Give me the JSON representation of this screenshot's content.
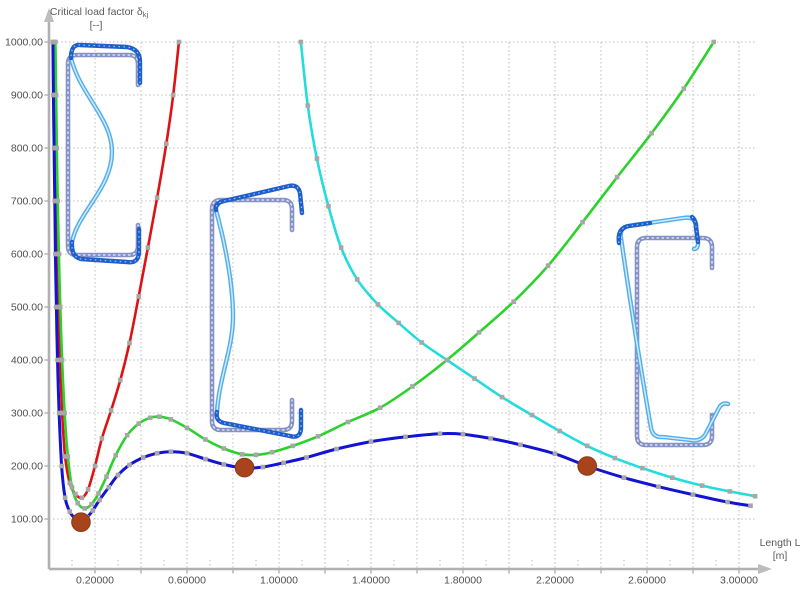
{
  "window": {
    "background": "#ffffff"
  },
  "y_axis": {
    "title": "Critical load factor δ",
    "title_sub": "kj",
    "unit": "[--]",
    "tick_labels": [
      "1000.00",
      "900.00",
      "800.00",
      "700.00",
      "600.00",
      "500.00",
      "400.00",
      "300.00",
      "200.00",
      "100.00"
    ]
  },
  "x_axis": {
    "title": "Length L",
    "unit": "[m]",
    "tick_labels": [
      "0.20000",
      "0.60000",
      "1.00000",
      "1.40000",
      "1.80000",
      "2.20000",
      "2.60000",
      "3.00000"
    ]
  },
  "chart_data": {
    "type": "line",
    "title": "",
    "xlabel": "Length L [m]",
    "ylabel": "Critical load factor δkj [--]",
    "xlim": [
      0,
      3.08
    ],
    "ylim": [
      0,
      1060
    ],
    "x_grid_step": 0.2,
    "y_grid_step": 100,
    "grid": "dotted",
    "legend": "none",
    "series": [
      {
        "name": "local-buckling-curve",
        "color": "#de1212",
        "points": [
          [
            0.022,
            1000
          ],
          [
            0.025,
            900
          ],
          [
            0.028,
            800
          ],
          [
            0.032,
            700
          ],
          [
            0.036,
            600
          ],
          [
            0.041,
            500
          ],
          [
            0.048,
            400
          ],
          [
            0.057,
            300
          ],
          [
            0.07,
            218
          ],
          [
            0.09,
            168
          ],
          [
            0.115,
            147
          ],
          [
            0.143,
            140
          ],
          [
            0.17,
            156
          ],
          [
            0.2,
            200
          ],
          [
            0.23,
            252
          ],
          [
            0.27,
            305
          ],
          [
            0.31,
            362
          ],
          [
            0.35,
            432
          ],
          [
            0.39,
            520
          ],
          [
            0.43,
            612
          ],
          [
            0.47,
            706
          ],
          [
            0.51,
            808
          ],
          [
            0.54,
            900
          ],
          [
            0.565,
            1000
          ]
        ]
      },
      {
        "name": "distortional-buckling-curve",
        "color": "#2bd22b",
        "points": [
          [
            0.028,
            1000
          ],
          [
            0.031,
            900
          ],
          [
            0.034,
            800
          ],
          [
            0.038,
            700
          ],
          [
            0.043,
            600
          ],
          [
            0.049,
            500
          ],
          [
            0.057,
            400
          ],
          [
            0.068,
            300
          ],
          [
            0.082,
            218
          ],
          [
            0.1,
            160
          ],
          [
            0.125,
            130
          ],
          [
            0.155,
            120
          ],
          [
            0.185,
            128
          ],
          [
            0.215,
            148
          ],
          [
            0.25,
            180
          ],
          [
            0.29,
            220
          ],
          [
            0.34,
            258
          ],
          [
            0.39,
            280
          ],
          [
            0.44,
            291
          ],
          [
            0.48,
            293
          ],
          [
            0.53,
            288
          ],
          [
            0.6,
            272
          ],
          [
            0.68,
            250
          ],
          [
            0.76,
            233
          ],
          [
            0.84,
            222
          ],
          [
            0.9,
            221
          ],
          [
            0.97,
            226
          ],
          [
            1.06,
            238
          ],
          [
            1.17,
            256
          ],
          [
            1.3,
            283
          ],
          [
            1.44,
            310
          ],
          [
            1.58,
            350
          ],
          [
            1.73,
            400
          ],
          [
            1.87,
            452
          ],
          [
            2.02,
            510
          ],
          [
            2.17,
            578
          ],
          [
            2.32,
            660
          ],
          [
            2.47,
            745
          ],
          [
            2.62,
            828
          ],
          [
            2.76,
            912
          ],
          [
            2.89,
            1000
          ]
        ]
      },
      {
        "name": "global-buckling-curve",
        "color": "#25dcdc",
        "points": [
          [
            1.095,
            1000
          ],
          [
            1.125,
            880
          ],
          [
            1.165,
            780
          ],
          [
            1.215,
            690
          ],
          [
            1.27,
            612
          ],
          [
            1.34,
            552
          ],
          [
            1.43,
            505
          ],
          [
            1.52,
            470
          ],
          [
            1.62,
            433
          ],
          [
            1.73,
            400
          ],
          [
            1.85,
            365
          ],
          [
            1.97,
            330
          ],
          [
            2.1,
            296
          ],
          [
            2.22,
            266
          ],
          [
            2.34,
            238
          ],
          [
            2.46,
            215
          ],
          [
            2.58,
            196
          ],
          [
            2.71,
            178
          ],
          [
            2.84,
            163
          ],
          [
            2.96,
            152
          ],
          [
            3.07,
            143
          ]
        ]
      },
      {
        "name": "governing-minimum-curve",
        "color": "#1313d2",
        "points": [
          [
            0.017,
            1000
          ],
          [
            0.019,
            900
          ],
          [
            0.022,
            800
          ],
          [
            0.025,
            700
          ],
          [
            0.028,
            600
          ],
          [
            0.032,
            500
          ],
          [
            0.037,
            400
          ],
          [
            0.044,
            300
          ],
          [
            0.055,
            200
          ],
          [
            0.07,
            140
          ],
          [
            0.09,
            114
          ],
          [
            0.115,
            101
          ],
          [
            0.14,
            97
          ],
          [
            0.165,
            103
          ],
          [
            0.19,
            116
          ],
          [
            0.22,
            136
          ],
          [
            0.26,
            160
          ],
          [
            0.3,
            183
          ],
          [
            0.35,
            202
          ],
          [
            0.41,
            216
          ],
          [
            0.47,
            224
          ],
          [
            0.53,
            227
          ],
          [
            0.6,
            224
          ],
          [
            0.68,
            213
          ],
          [
            0.76,
            203
          ],
          [
            0.85,
            196
          ],
          [
            0.93,
            198
          ],
          [
            1.02,
            206
          ],
          [
            1.12,
            216
          ],
          [
            1.25,
            232
          ],
          [
            1.4,
            246
          ],
          [
            1.55,
            255
          ],
          [
            1.7,
            261
          ],
          [
            1.8,
            260
          ],
          [
            1.92,
            252
          ],
          [
            2.05,
            240
          ],
          [
            2.2,
            223
          ],
          [
            2.34,
            200
          ],
          [
            2.5,
            178
          ],
          [
            2.65,
            161
          ],
          [
            2.8,
            146
          ],
          [
            2.95,
            132
          ],
          [
            3.05,
            125
          ]
        ]
      }
    ],
    "minima_points": {
      "color": "#a8441c",
      "stroke": "#8c3714",
      "points": [
        [
          0.139,
          94
        ],
        [
          0.85,
          197
        ],
        [
          2.34,
          200
        ]
      ]
    },
    "point_marker_color": "#a7a7a7",
    "mode_illustrations": [
      {
        "name": "local-buckling-cross-section"
      },
      {
        "name": "distortional-buckling-cross-section"
      },
      {
        "name": "global-buckling-cross-section"
      }
    ]
  },
  "colors": {
    "axis": "#b0b0b0",
    "grid": "#bcbcbc",
    "tick_text": "#4f4f4f",
    "section_undeformed": "#8492c6",
    "section_deformed_light": "#54aeea",
    "section_deformed_dark": "#1e5fcc"
  }
}
